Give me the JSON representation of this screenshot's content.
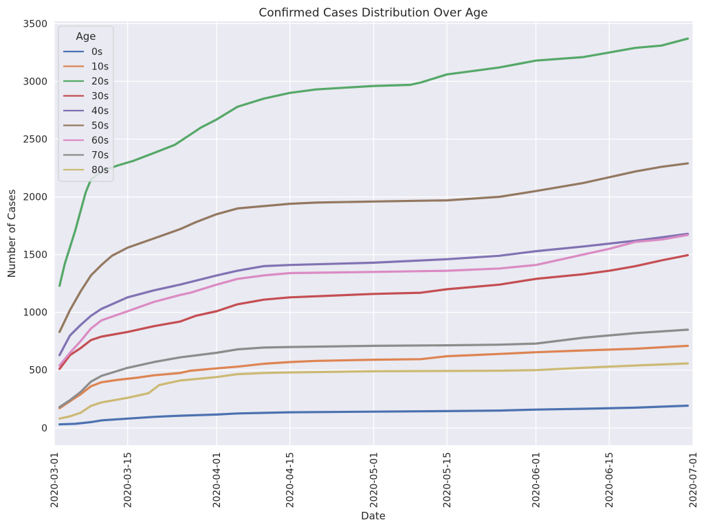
{
  "chart_data": {
    "type": "line",
    "title": "Confirmed Cases Distribution Over Age",
    "xlabel": "Date",
    "ylabel": "Number of Cases",
    "x_range": [
      "2020-03-01",
      "2020-07-01"
    ],
    "ylim": [
      -150,
      3520
    ],
    "x_ticks": [
      "2020-03-01",
      "2020-03-15",
      "2020-04-01",
      "2020-04-15",
      "2020-05-01",
      "2020-05-15",
      "2020-06-01",
      "2020-06-15",
      "2020-07-01"
    ],
    "y_ticks": [
      0,
      500,
      1000,
      1500,
      2000,
      2500,
      3000,
      3500
    ],
    "grid": true,
    "legend_title": "Age",
    "legend_position": "upper-left",
    "colors": [
      "#4c72b0",
      "#dd8452",
      "#55a868",
      "#c44e52",
      "#8172b3",
      "#937860",
      "#da8bc3",
      "#8c8c8c",
      "#ccb974"
    ],
    "series": [
      {
        "name": "0s",
        "points": [
          [
            "2020-03-02",
            30
          ],
          [
            "2020-03-05",
            35
          ],
          [
            "2020-03-08",
            50
          ],
          [
            "2020-03-10",
            65
          ],
          [
            "2020-03-15",
            80
          ],
          [
            "2020-03-20",
            95
          ],
          [
            "2020-03-25",
            105
          ],
          [
            "2020-04-01",
            115
          ],
          [
            "2020-04-05",
            125
          ],
          [
            "2020-04-15",
            135
          ],
          [
            "2020-05-01",
            140
          ],
          [
            "2020-05-15",
            145
          ],
          [
            "2020-05-25",
            150
          ],
          [
            "2020-06-01",
            158
          ],
          [
            "2020-06-10",
            165
          ],
          [
            "2020-06-20",
            175
          ],
          [
            "2020-06-30",
            192
          ]
        ]
      },
      {
        "name": "10s",
        "points": [
          [
            "2020-03-02",
            170
          ],
          [
            "2020-03-04",
            230
          ],
          [
            "2020-03-06",
            290
          ],
          [
            "2020-03-08",
            360
          ],
          [
            "2020-03-10",
            395
          ],
          [
            "2020-03-13",
            415
          ],
          [
            "2020-03-17",
            435
          ],
          [
            "2020-03-20",
            455
          ],
          [
            "2020-03-25",
            475
          ],
          [
            "2020-03-27",
            495
          ],
          [
            "2020-04-01",
            515
          ],
          [
            "2020-04-05",
            530
          ],
          [
            "2020-04-10",
            555
          ],
          [
            "2020-04-15",
            570
          ],
          [
            "2020-04-20",
            580
          ],
          [
            "2020-05-01",
            590
          ],
          [
            "2020-05-10",
            595
          ],
          [
            "2020-05-13",
            610
          ],
          [
            "2020-05-15",
            620
          ],
          [
            "2020-05-20",
            630
          ],
          [
            "2020-05-25",
            640
          ],
          [
            "2020-06-01",
            655
          ],
          [
            "2020-06-10",
            670
          ],
          [
            "2020-06-20",
            685
          ],
          [
            "2020-06-30",
            710
          ]
        ]
      },
      {
        "name": "20s",
        "points": [
          [
            "2020-03-02",
            1230
          ],
          [
            "2020-03-03",
            1420
          ],
          [
            "2020-03-05",
            1710
          ],
          [
            "2020-03-07",
            2040
          ],
          [
            "2020-03-08",
            2150
          ],
          [
            "2020-03-10",
            2220
          ],
          [
            "2020-03-13",
            2270
          ],
          [
            "2020-03-16",
            2310
          ],
          [
            "2020-03-20",
            2380
          ],
          [
            "2020-03-24",
            2450
          ],
          [
            "2020-03-27",
            2540
          ],
          [
            "2020-03-29",
            2600
          ],
          [
            "2020-04-01",
            2670
          ],
          [
            "2020-04-05",
            2780
          ],
          [
            "2020-04-10",
            2850
          ],
          [
            "2020-04-15",
            2900
          ],
          [
            "2020-04-20",
            2930
          ],
          [
            "2020-05-01",
            2960
          ],
          [
            "2020-05-08",
            2970
          ],
          [
            "2020-05-10",
            2990
          ],
          [
            "2020-05-15",
            3060
          ],
          [
            "2020-05-20",
            3090
          ],
          [
            "2020-05-25",
            3120
          ],
          [
            "2020-06-01",
            3180
          ],
          [
            "2020-06-10",
            3210
          ],
          [
            "2020-06-15",
            3250
          ],
          [
            "2020-06-20",
            3290
          ],
          [
            "2020-06-25",
            3310
          ],
          [
            "2020-06-30",
            3370
          ]
        ]
      },
      {
        "name": "30s",
        "points": [
          [
            "2020-03-02",
            510
          ],
          [
            "2020-03-04",
            630
          ],
          [
            "2020-03-06",
            690
          ],
          [
            "2020-03-08",
            760
          ],
          [
            "2020-03-10",
            790
          ],
          [
            "2020-03-15",
            830
          ],
          [
            "2020-03-20",
            880
          ],
          [
            "2020-03-25",
            920
          ],
          [
            "2020-03-28",
            970
          ],
          [
            "2020-04-01",
            1010
          ],
          [
            "2020-04-05",
            1070
          ],
          [
            "2020-04-10",
            1110
          ],
          [
            "2020-04-15",
            1130
          ],
          [
            "2020-05-01",
            1160
          ],
          [
            "2020-05-10",
            1170
          ],
          [
            "2020-05-15",
            1200
          ],
          [
            "2020-05-25",
            1240
          ],
          [
            "2020-06-01",
            1290
          ],
          [
            "2020-06-10",
            1330
          ],
          [
            "2020-06-15",
            1360
          ],
          [
            "2020-06-20",
            1400
          ],
          [
            "2020-06-25",
            1450
          ],
          [
            "2020-06-30",
            1495
          ]
        ]
      },
      {
        "name": "40s",
        "points": [
          [
            "2020-03-02",
            630
          ],
          [
            "2020-03-04",
            800
          ],
          [
            "2020-03-06",
            890
          ],
          [
            "2020-03-08",
            970
          ],
          [
            "2020-03-10",
            1030
          ],
          [
            "2020-03-15",
            1130
          ],
          [
            "2020-03-20",
            1190
          ],
          [
            "2020-03-25",
            1240
          ],
          [
            "2020-04-01",
            1320
          ],
          [
            "2020-04-05",
            1360
          ],
          [
            "2020-04-10",
            1400
          ],
          [
            "2020-04-15",
            1410
          ],
          [
            "2020-05-01",
            1430
          ],
          [
            "2020-05-15",
            1460
          ],
          [
            "2020-05-25",
            1490
          ],
          [
            "2020-06-01",
            1530
          ],
          [
            "2020-06-10",
            1570
          ],
          [
            "2020-06-15",
            1595
          ],
          [
            "2020-06-20",
            1620
          ],
          [
            "2020-06-25",
            1650
          ],
          [
            "2020-06-30",
            1680
          ]
        ]
      },
      {
        "name": "50s",
        "points": [
          [
            "2020-03-02",
            830
          ],
          [
            "2020-03-04",
            1020
          ],
          [
            "2020-03-06",
            1180
          ],
          [
            "2020-03-08",
            1320
          ],
          [
            "2020-03-10",
            1410
          ],
          [
            "2020-03-12",
            1490
          ],
          [
            "2020-03-15",
            1560
          ],
          [
            "2020-03-20",
            1640
          ],
          [
            "2020-03-25",
            1720
          ],
          [
            "2020-03-28",
            1780
          ],
          [
            "2020-04-01",
            1850
          ],
          [
            "2020-04-05",
            1900
          ],
          [
            "2020-04-10",
            1920
          ],
          [
            "2020-04-15",
            1940
          ],
          [
            "2020-04-20",
            1950
          ],
          [
            "2020-05-01",
            1960
          ],
          [
            "2020-05-15",
            1970
          ],
          [
            "2020-05-25",
            2000
          ],
          [
            "2020-06-01",
            2050
          ],
          [
            "2020-06-10",
            2120
          ],
          [
            "2020-06-15",
            2170
          ],
          [
            "2020-06-20",
            2220
          ],
          [
            "2020-06-25",
            2260
          ],
          [
            "2020-06-30",
            2290
          ]
        ]
      },
      {
        "name": "60s",
        "points": [
          [
            "2020-03-02",
            540
          ],
          [
            "2020-03-04",
            650
          ],
          [
            "2020-03-06",
            750
          ],
          [
            "2020-03-08",
            860
          ],
          [
            "2020-03-10",
            930
          ],
          [
            "2020-03-15",
            1010
          ],
          [
            "2020-03-20",
            1090
          ],
          [
            "2020-03-25",
            1150
          ],
          [
            "2020-03-27",
            1170
          ],
          [
            "2020-04-01",
            1240
          ],
          [
            "2020-04-05",
            1290
          ],
          [
            "2020-04-10",
            1320
          ],
          [
            "2020-04-15",
            1340
          ],
          [
            "2020-05-01",
            1350
          ],
          [
            "2020-05-15",
            1360
          ],
          [
            "2020-05-25",
            1380
          ],
          [
            "2020-06-01",
            1410
          ],
          [
            "2020-06-10",
            1500
          ],
          [
            "2020-06-15",
            1550
          ],
          [
            "2020-06-20",
            1610
          ],
          [
            "2020-06-25",
            1630
          ],
          [
            "2020-06-30",
            1670
          ]
        ]
      },
      {
        "name": "70s",
        "points": [
          [
            "2020-03-02",
            180
          ],
          [
            "2020-03-04",
            240
          ],
          [
            "2020-03-06",
            310
          ],
          [
            "2020-03-08",
            400
          ],
          [
            "2020-03-10",
            450
          ],
          [
            "2020-03-15",
            520
          ],
          [
            "2020-03-20",
            570
          ],
          [
            "2020-03-25",
            610
          ],
          [
            "2020-04-01",
            650
          ],
          [
            "2020-04-05",
            680
          ],
          [
            "2020-04-10",
            695
          ],
          [
            "2020-04-15",
            700
          ],
          [
            "2020-05-01",
            710
          ],
          [
            "2020-05-15",
            715
          ],
          [
            "2020-05-25",
            720
          ],
          [
            "2020-06-01",
            730
          ],
          [
            "2020-06-10",
            780
          ],
          [
            "2020-06-20",
            820
          ],
          [
            "2020-06-30",
            850
          ]
        ]
      },
      {
        "name": "80s",
        "points": [
          [
            "2020-03-02",
            80
          ],
          [
            "2020-03-04",
            100
          ],
          [
            "2020-03-06",
            130
          ],
          [
            "2020-03-08",
            190
          ],
          [
            "2020-03-10",
            220
          ],
          [
            "2020-03-15",
            260
          ],
          [
            "2020-03-19",
            300
          ],
          [
            "2020-03-21",
            370
          ],
          [
            "2020-03-25",
            410
          ],
          [
            "2020-04-01",
            440
          ],
          [
            "2020-04-05",
            465
          ],
          [
            "2020-04-10",
            475
          ],
          [
            "2020-04-15",
            480
          ],
          [
            "2020-05-01",
            490
          ],
          [
            "2020-05-25",
            495
          ],
          [
            "2020-06-01",
            500
          ],
          [
            "2020-06-10",
            520
          ],
          [
            "2020-06-20",
            540
          ],
          [
            "2020-06-30",
            558
          ]
        ]
      }
    ]
  }
}
